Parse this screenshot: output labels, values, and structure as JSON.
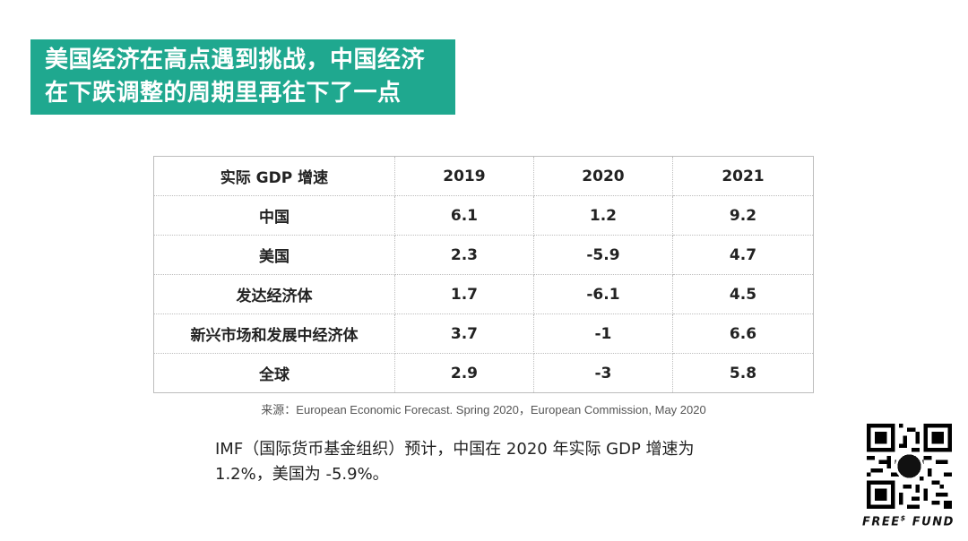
{
  "title": {
    "line1": "美国经济在高点遇到挑战，中国经济",
    "line2": "在下跌调整的周期里再往下了一点"
  },
  "table": {
    "headers": [
      "实际 GDP 增速",
      "2019",
      "2020",
      "2021"
    ],
    "rows": [
      [
        "中国",
        "6.1",
        "1.2",
        "9.2"
      ],
      [
        "美国",
        "2.3",
        "-5.9",
        "4.7"
      ],
      [
        "发达经济体",
        "1.7",
        "-6.1",
        "4.5"
      ],
      [
        "新兴市场和发展中经济体",
        "3.7",
        "-1",
        "6.6"
      ],
      [
        "全球",
        "2.9",
        "-3",
        "5.8"
      ]
    ]
  },
  "source": "来源：European Economic Forecast. Spring 2020，European Commission, May 2020",
  "body": {
    "line1": "IMF（国际货币基金组织）预计，中国在 2020 年实际 GDP 增速为",
    "line2": "1.2%，美国为 -5.9%。"
  },
  "brand": {
    "qr_icon": "qr-code-icon",
    "name_left": "FREE",
    "name_sup": "$",
    "name_right": "FUND",
    "qr_badge": "FREE"
  },
  "colors": {
    "accent": "#1fa88f"
  }
}
